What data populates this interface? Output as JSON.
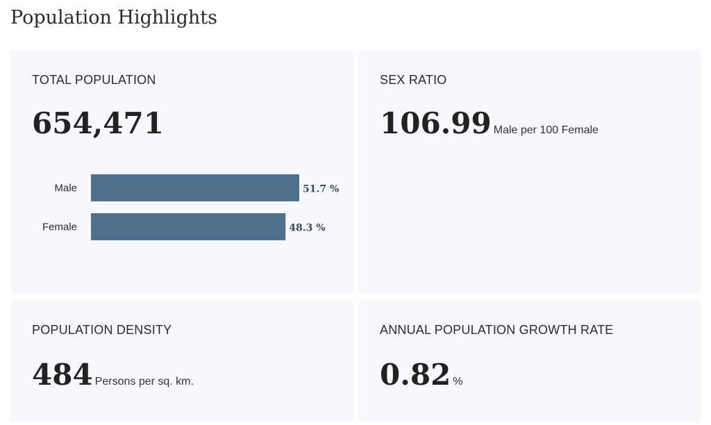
{
  "page": {
    "title": "Population Highlights"
  },
  "cards": {
    "total": {
      "label": "TOTAL POPULATION",
      "value": "654,471"
    },
    "sex_ratio": {
      "label": "SEX RATIO",
      "value": "106.99",
      "unit": "Male per 100 Female"
    },
    "density": {
      "label": "POPULATION DENSITY",
      "value": "484",
      "unit": "Persons per sq. km."
    },
    "growth": {
      "label": "ANNUAL POPULATION GROWTH RATE",
      "value": "0.82",
      "unit": "%"
    }
  },
  "colors": {
    "bar": "#50718e",
    "card_bg": "#f7f7fc"
  },
  "chart_data": {
    "type": "bar",
    "orientation": "horizontal",
    "categories": [
      "Male",
      "Female"
    ],
    "values": [
      51.7,
      48.3
    ],
    "value_labels": [
      "51.7 %",
      "48.3 %"
    ],
    "xlim": [
      0,
      51.7
    ],
    "grid": false
  }
}
